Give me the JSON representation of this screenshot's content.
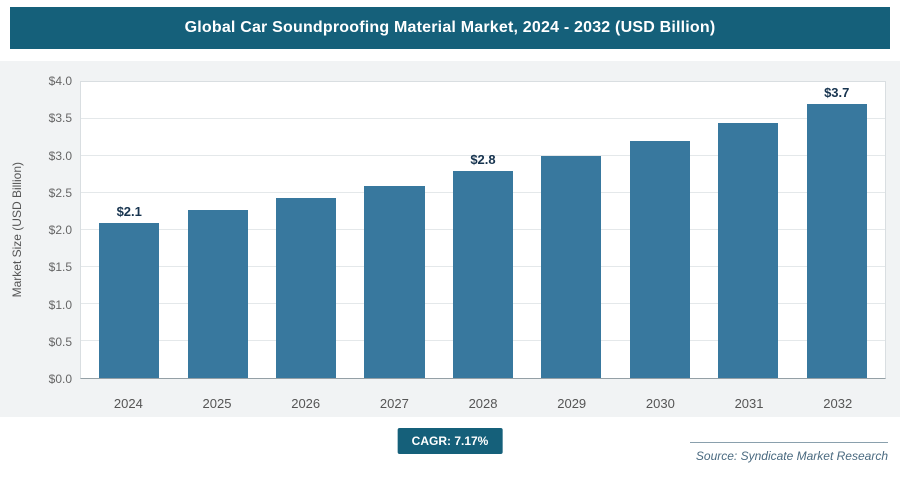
{
  "header": {
    "title": "Global Car Soundproofing Material Market, 2024 - 2032 (USD Billion)"
  },
  "chart_data": {
    "type": "bar",
    "title": "Global Car Soundproofing Material Market, 2024 - 2032 (USD Billion)",
    "categories": [
      "2024",
      "2025",
      "2026",
      "2027",
      "2028",
      "2029",
      "2030",
      "2031",
      "2032"
    ],
    "values": [
      2.1,
      2.27,
      2.43,
      2.6,
      2.8,
      3.0,
      3.2,
      3.45,
      3.7
    ],
    "data_labels": [
      "$2.1",
      null,
      null,
      null,
      "$2.8",
      null,
      null,
      null,
      "$3.7"
    ],
    "xlabel": "",
    "ylabel": "Market Size (USD Billion)",
    "ylim": [
      0,
      4.0
    ],
    "ytick_step": 0.5,
    "yticks": [
      "$0.0",
      "$0.5",
      "$1.0",
      "$1.5",
      "$2.0",
      "$2.5",
      "$3.0",
      "$3.5",
      "$4.0"
    ],
    "grid": true,
    "legend_position": "none",
    "bar_color": "#38789e"
  },
  "footer": {
    "cagr_label": "CAGR: 7.17%",
    "source": "Source: Syndicate Market Research"
  }
}
